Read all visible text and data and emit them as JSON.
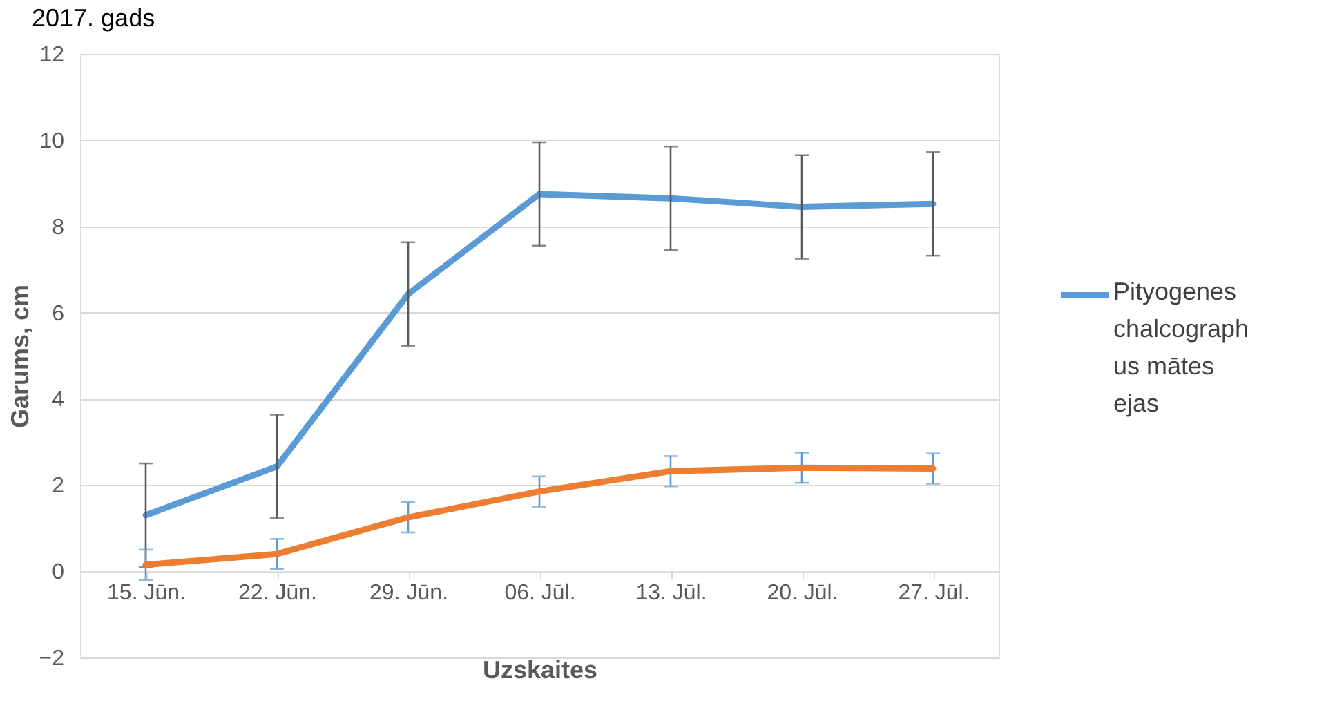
{
  "chart_data": {
    "type": "line",
    "title": "2017. gads",
    "xlabel": "Uzskaites",
    "ylabel": "Garums, cm",
    "categories": [
      "15. Jūn.",
      "22. Jūn.",
      "29. Jūn.",
      "06. Jūl.",
      "13. Jūl.",
      "20. Jūl.",
      "27. Jūl."
    ],
    "series": [
      {
        "name": "Pityogenes chalcographus mātes ejas",
        "color": "#5b9bd5",
        "values": [
          1.3,
          2.43,
          6.43,
          8.75,
          8.65,
          8.45,
          8.52
        ],
        "errors": [
          1.2,
          1.2,
          1.2,
          1.2,
          1.2,
          1.2,
          1.2
        ]
      },
      {
        "color": "#ed7d31",
        "values": [
          0.15,
          0.4,
          1.25,
          1.85,
          2.32,
          2.4,
          2.38
        ],
        "errors": [
          0.35,
          0.35,
          0.35,
          0.35,
          0.35,
          0.35,
          0.35
        ]
      }
    ],
    "ylim": [
      -2,
      12
    ],
    "yticks": [
      -2,
      0,
      2,
      4,
      6,
      8,
      10,
      12
    ],
    "grid": "y",
    "legend": "right",
    "marker": "none",
    "line_style": "solid"
  }
}
